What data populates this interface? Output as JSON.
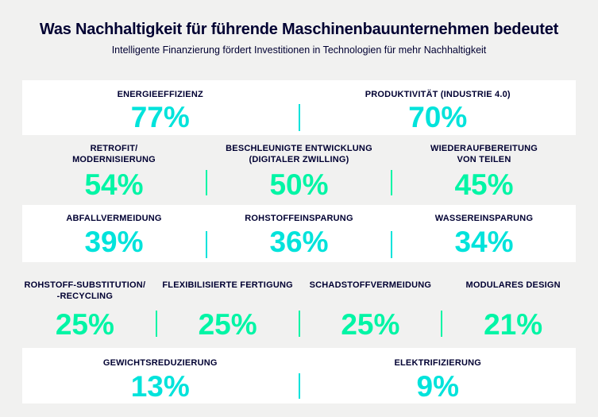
{
  "header": {
    "title": "Was Nachhaltigkeit für führende Maschinenbauunternehmen bedeutet",
    "subtitle": "Intelligente Finanzierung fördert Investitionen in Technologien für mehr Nachhaltigkeit"
  },
  "colors": {
    "background": "#F1F1F0",
    "card_background": "#FFFFFF",
    "text_navy": "#000032",
    "accent_cyan": "#00E3DB",
    "accent_green": "#00F5A5"
  },
  "rows": [
    {
      "style": "card",
      "accent": "cyan",
      "items": [
        {
          "lines": [
            "ENERGIEEFFIZIENZ"
          ],
          "value": "77%"
        },
        {
          "lines": [
            "PRODUKTIVITÄT (INDUSTRIE 4.0)"
          ],
          "value": "70%"
        }
      ]
    },
    {
      "style": "plain",
      "accent": "green",
      "items": [
        {
          "lines": [
            "RETROFIT/",
            "MODERNISIERUNG"
          ],
          "value": "54%"
        },
        {
          "lines": [
            "BESCHLEUNIGTE ENTWICKLUNG",
            "(DIGITALER ZWILLING)"
          ],
          "value": "50%"
        },
        {
          "lines": [
            "WIEDERAUFBEREITUNG",
            "VON TEILEN"
          ],
          "value": "45%"
        }
      ]
    },
    {
      "style": "card",
      "accent": "cyan",
      "items": [
        {
          "lines": [
            "ABFALLVERMEIDUNG"
          ],
          "value": "39%"
        },
        {
          "lines": [
            "ROHSTOFFEINSPARUNG"
          ],
          "value": "36%"
        },
        {
          "lines": [
            "WASSEREINSPARUNG"
          ],
          "value": "34%"
        }
      ]
    },
    {
      "style": "plain",
      "accent": "green",
      "items": [
        {
          "lines": [
            "ROHSTOFF-SUBSTITUTION/",
            "-RECYCLING"
          ],
          "value": "25%"
        },
        {
          "lines": [
            "FLEXIBILISIERTE FERTIGUNG"
          ],
          "value": "25%"
        },
        {
          "lines": [
            "SCHADSTOFFVERMEIDUNG"
          ],
          "value": "25%"
        },
        {
          "lines": [
            "MODULARES DESIGN"
          ],
          "value": "21%"
        }
      ]
    },
    {
      "style": "card",
      "accent": "cyan",
      "items": [
        {
          "lines": [
            "GEWICHTSREDUZIERUNG"
          ],
          "value": "13%"
        },
        {
          "lines": [
            "ELEKTRIFIZIERUNG"
          ],
          "value": "9%"
        }
      ]
    }
  ],
  "chart_data": {
    "type": "table",
    "title": "Was Nachhaltigkeit für führende Maschinenbauunternehmen bedeutet",
    "subtitle": "Intelligente Finanzierung fördert Investitionen in Technologien für mehr Nachhaltigkeit",
    "unit": "%",
    "categories": [
      "ENERGIEEFFIZIENZ",
      "PRODUKTIVITÄT (INDUSTRIE 4.0)",
      "RETROFIT/MODERNISIERUNG",
      "BESCHLEUNIGTE ENTWICKLUNG (DIGITALER ZWILLING)",
      "WIEDERAUFBEREITUNG VON TEILEN",
      "ABFALLVERMEIDUNG",
      "ROHSTOFFEINSPARUNG",
      "WASSEREINSPARUNG",
      "ROHSTOFF-SUBSTITUTION/-RECYCLING",
      "FLEXIBILISIERTE FERTIGUNG",
      "SCHADSTOFFVERMEIDUNG",
      "MODULARES DESIGN",
      "GEWICHTSREDUZIERUNG",
      "ELEKTRIFIZIERUNG"
    ],
    "values": [
      77,
      70,
      54,
      50,
      45,
      39,
      36,
      34,
      25,
      25,
      25,
      21,
      13,
      9
    ],
    "layout": "5 alternating rows: white cards use cyan values, grey rows use green values, thin vertical accent dividers between columns"
  }
}
